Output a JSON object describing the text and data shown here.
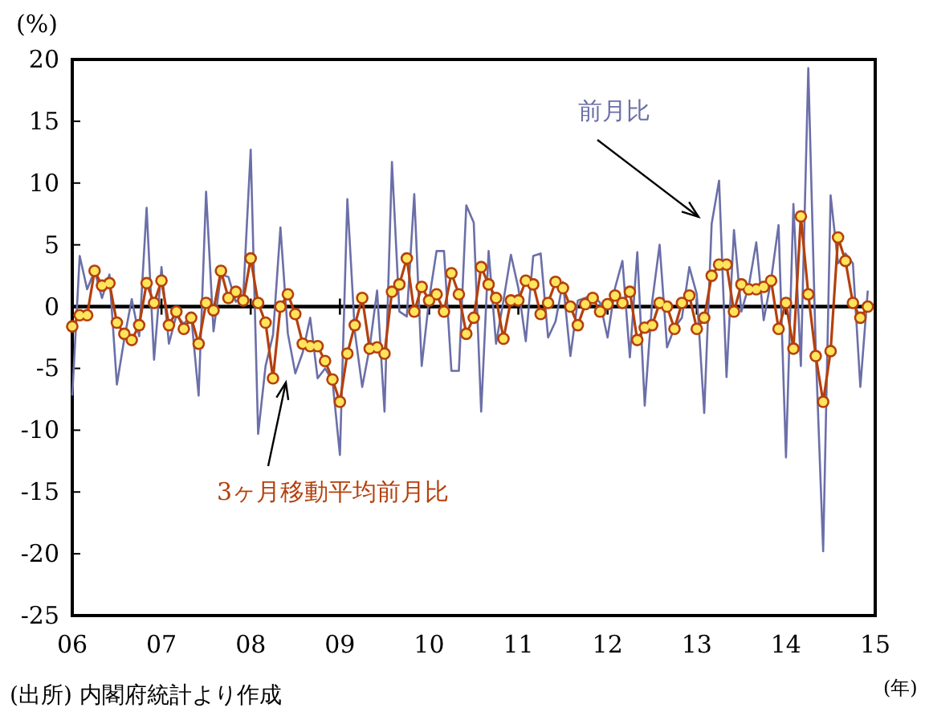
{
  "chart_data": {
    "type": "line",
    "ylabel": "(%)",
    "xlabel": "(年)",
    "x": [
      "2006-01",
      "2006-02",
      "2006-03",
      "2006-04",
      "2006-05",
      "2006-06",
      "2006-07",
      "2006-08",
      "2006-09",
      "2006-10",
      "2006-11",
      "2006-12",
      "2007-01",
      "2007-02",
      "2007-03",
      "2007-04",
      "2007-05",
      "2007-06",
      "2007-07",
      "2007-08",
      "2007-09",
      "2007-10",
      "2007-11",
      "2007-12",
      "2008-01",
      "2008-02",
      "2008-03",
      "2008-04",
      "2008-05",
      "2008-06",
      "2008-07",
      "2008-08",
      "2008-09",
      "2008-10",
      "2008-11",
      "2008-12",
      "2009-01",
      "2009-02",
      "2009-03",
      "2009-04",
      "2009-05",
      "2009-06",
      "2009-07",
      "2009-08",
      "2009-09",
      "2009-10",
      "2009-11",
      "2009-12",
      "2010-01",
      "2010-02",
      "2010-03",
      "2010-04",
      "2010-05",
      "2010-06",
      "2010-07",
      "2010-08",
      "2010-09",
      "2010-10",
      "2010-11",
      "2010-12",
      "2011-01",
      "2011-02",
      "2011-03",
      "2011-04",
      "2011-05",
      "2011-06",
      "2011-07",
      "2011-08",
      "2011-09",
      "2011-10",
      "2011-11",
      "2011-12",
      "2012-01",
      "2012-02",
      "2012-03",
      "2012-04",
      "2012-05",
      "2012-06",
      "2012-07",
      "2012-08",
      "2012-09",
      "2012-10",
      "2012-11",
      "2012-12",
      "2013-01",
      "2013-02",
      "2013-03",
      "2013-04",
      "2013-05",
      "2013-06",
      "2013-07",
      "2013-08",
      "2013-09",
      "2013-10",
      "2013-11",
      "2013-12",
      "2014-01",
      "2014-02",
      "2014-03",
      "2014-04",
      "2014-05",
      "2014-06",
      "2014-07",
      "2014-08",
      "2014-09",
      "2014-10",
      "2014-11",
      "2014-12"
    ],
    "series": [
      {
        "name": "前月比",
        "color": "#6b6fa8",
        "marker": "none",
        "values": [
          -7.2,
          4.1,
          1.4,
          2.9,
          0.7,
          2.6,
          -6.3,
          -2.6,
          0.6,
          -2.4,
          8.0,
          -4.3,
          3.2,
          -3.0,
          -0.7,
          -1.4,
          -0.7,
          -7.2,
          9.3,
          -2.0,
          2.6,
          2.4,
          0.4,
          0.9,
          12.7,
          -10.3,
          -4.8,
          -2.3,
          6.4,
          -2.2,
          -5.4,
          -3.7,
          -0.9,
          -5.8,
          -5.0,
          -6.0,
          -12.0,
          8.7,
          -2.0,
          -6.5,
          -3.3,
          1.3,
          -8.5,
          11.7,
          -0.4,
          -0.8,
          9.1,
          -4.8,
          0.6,
          4.5,
          4.5,
          -5.2,
          -5.2,
          8.2,
          6.8,
          -8.5,
          4.5,
          -3.0,
          0.5,
          4.2,
          1.5,
          -2.8,
          4.1,
          4.3,
          -2.5,
          -1.2,
          2.0,
          -4.0,
          0.5,
          0.7,
          1.0,
          0.3,
          -2.5,
          1.5,
          3.7,
          -4.1,
          4.4,
          -8.0,
          0.4,
          5.0,
          -3.3,
          -1.7,
          -0.9,
          3.2,
          1.0,
          -8.6,
          6.7,
          10.2,
          -5.7,
          6.2,
          -0.4,
          1.7,
          5.2,
          -1.1,
          2.2,
          6.6,
          -12.2,
          8.3,
          -4.8,
          19.3,
          -3.5,
          -19.8,
          9.0,
          3.5,
          4.3,
          3.5,
          -6.5,
          1.3
        ]
      },
      {
        "name": "3ヶ月移動平均前月比",
        "color": "#b5400c",
        "marker": "circle",
        "values": [
          -1.6,
          -0.7,
          -0.7,
          2.9,
          1.7,
          1.9,
          -1.3,
          -2.2,
          -2.7,
          -1.5,
          1.9,
          0.3,
          2.1,
          -1.5,
          -0.4,
          -1.8,
          -0.9,
          -3.0,
          0.3,
          -0.3,
          2.9,
          0.7,
          1.2,
          0.5,
          3.9,
          0.3,
          -1.3,
          -5.8,
          0.0,
          1.0,
          -0.6,
          -3.0,
          -3.2,
          -3.2,
          -4.4,
          -5.9,
          -7.7,
          -3.8,
          -1.5,
          0.7,
          -3.4,
          -3.3,
          -3.8,
          1.2,
          1.8,
          3.9,
          -0.4,
          1.6,
          0.5,
          1.0,
          -0.4,
          2.7,
          1.0,
          -2.2,
          -0.9,
          3.2,
          1.8,
          0.7,
          -2.6,
          0.5,
          0.5,
          2.1,
          1.8,
          -0.6,
          0.3,
          2.0,
          1.5,
          0.0,
          -1.5,
          0.2,
          0.7,
          -0.4,
          0.2,
          0.9,
          0.3,
          1.2,
          -2.7,
          -1.7,
          -1.5,
          0.3,
          0.0,
          -1.8,
          0.3,
          0.9,
          -1.8,
          -0.9,
          2.5,
          3.4,
          3.4,
          -0.4,
          1.8,
          1.4,
          1.4,
          1.6,
          2.1,
          -1.8,
          0.3,
          -3.4,
          7.3,
          1.0,
          -4.0,
          -7.7,
          -3.6,
          5.6,
          3.7,
          0.3,
          -0.9,
          0.0
        ]
      }
    ],
    "xlim": [
      "2006",
      "2015"
    ],
    "xticks": [
      {
        "value": "2006",
        "label": "06"
      },
      {
        "value": "2007",
        "label": "07"
      },
      {
        "value": "2008",
        "label": "08"
      },
      {
        "value": "2009",
        "label": "09"
      },
      {
        "value": "2010",
        "label": "10"
      },
      {
        "value": "2011",
        "label": "11"
      },
      {
        "value": "2012",
        "label": "12"
      },
      {
        "value": "2013",
        "label": "13"
      },
      {
        "value": "2014",
        "label": "14"
      },
      {
        "value": "2015",
        "label": "15"
      }
    ],
    "ylim": [
      -25,
      20
    ],
    "yticks": [
      -25,
      -20,
      -15,
      -10,
      -5,
      0,
      5,
      10,
      15,
      20
    ],
    "ref_lines": [
      {
        "axis": "y",
        "value": 0,
        "color": "#000000"
      }
    ],
    "annotations": [
      "(出所) 内閣府統計より作成"
    ],
    "grid": false,
    "legend": false
  }
}
